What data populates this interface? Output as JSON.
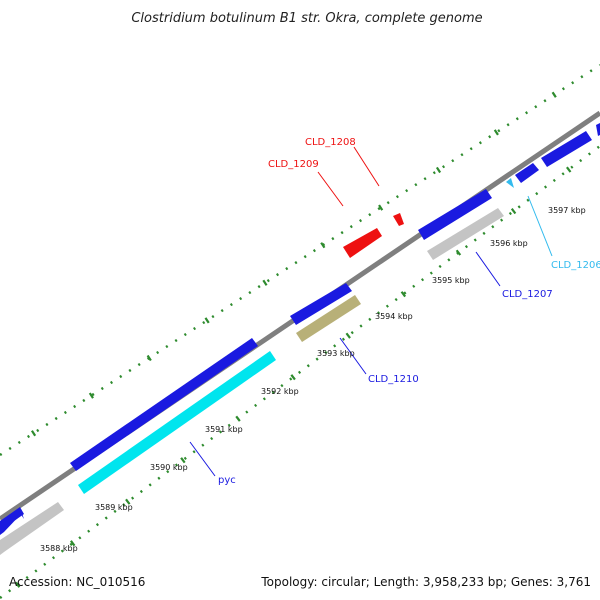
{
  "title": "Clostridium botulinum B1 str. Okra, complete genome",
  "footer": {
    "accession": "Accession: NC_010516",
    "topology": "Topology: circular; Length: 3,958,233 bp; Genes: 3,761"
  },
  "colors": {
    "backbone": "#8a8a8a",
    "dots": "#2e8b2e",
    "blue_gene": "#1a1ae0",
    "cyan_gene": "#00e5ee",
    "gray_gene": "#c4c4c4",
    "olive_gene": "#b8b078",
    "red_gene": "#ee1111",
    "light_blue_gene": "#33bbee"
  },
  "ticks": [
    {
      "label": "3588 kbp"
    },
    {
      "label": "3589 kbp"
    },
    {
      "label": "3590 kbp"
    },
    {
      "label": "3591 kbp"
    },
    {
      "label": "3592 kbp"
    },
    {
      "label": "3593 kbp"
    },
    {
      "label": "3594 kbp"
    },
    {
      "label": "3595 kbp"
    },
    {
      "label": "3596 kbp"
    },
    {
      "label": "3597 kbp"
    }
  ],
  "gene_labels": [
    {
      "text": "CLD_1208",
      "color": "#ee1111"
    },
    {
      "text": "CLD_1209",
      "color": "#ee1111"
    },
    {
      "text": "CLD_1206",
      "color": "#33bbee"
    },
    {
      "text": "CLD_1207",
      "color": "#1a1ae0"
    },
    {
      "text": "CLD_1210",
      "color": "#1a1ae0"
    },
    {
      "text": "pyc",
      "color": "#1a1ae0"
    }
  ]
}
